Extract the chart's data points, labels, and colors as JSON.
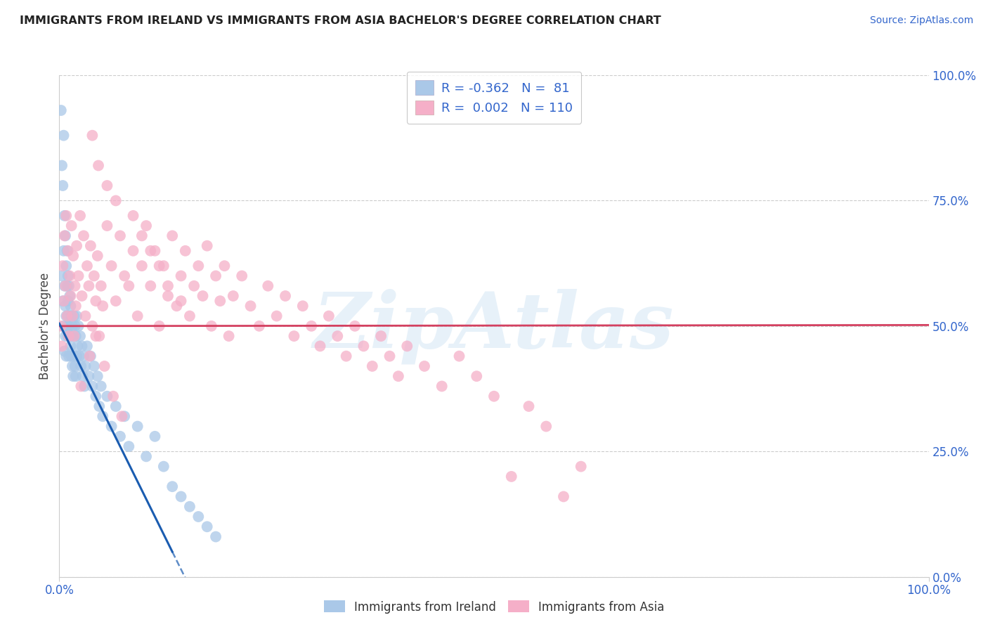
{
  "title": "IMMIGRANTS FROM IRELAND VS IMMIGRANTS FROM ASIA BACHELOR'S DEGREE CORRELATION CHART",
  "source": "Source: ZipAtlas.com",
  "ylabel": "Bachelor's Degree",
  "legend_labels": [
    "Immigrants from Ireland",
    "Immigrants from Asia"
  ],
  "legend_R": [
    -0.362,
    0.002
  ],
  "legend_N": [
    81,
    110
  ],
  "xlim": [
    0.0,
    1.0
  ],
  "ylim": [
    0.0,
    1.0
  ],
  "ytick_labels": [
    "0.0%",
    "25.0%",
    "50.0%",
    "75.0%",
    "100.0%"
  ],
  "ytick_values": [
    0.0,
    0.25,
    0.5,
    0.75,
    1.0
  ],
  "color_ireland": "#aac8e8",
  "color_asia": "#f5afc8",
  "color_ireland_line": "#1a5cb0",
  "color_asia_line": "#d44060",
  "watermark": "ZipAtlas",
  "ireland_x": [
    0.002,
    0.003,
    0.003,
    0.004,
    0.004,
    0.005,
    0.005,
    0.005,
    0.006,
    0.006,
    0.006,
    0.007,
    0.007,
    0.007,
    0.008,
    0.008,
    0.008,
    0.009,
    0.009,
    0.009,
    0.01,
    0.01,
    0.01,
    0.01,
    0.011,
    0.011,
    0.011,
    0.012,
    0.012,
    0.013,
    0.013,
    0.014,
    0.014,
    0.015,
    0.015,
    0.016,
    0.016,
    0.017,
    0.017,
    0.018,
    0.018,
    0.019,
    0.019,
    0.02,
    0.02,
    0.021,
    0.022,
    0.023,
    0.024,
    0.025,
    0.026,
    0.027,
    0.028,
    0.029,
    0.03,
    0.032,
    0.034,
    0.036,
    0.038,
    0.04,
    0.042,
    0.044,
    0.046,
    0.048,
    0.05,
    0.055,
    0.06,
    0.065,
    0.07,
    0.075,
    0.08,
    0.09,
    0.1,
    0.11,
    0.12,
    0.13,
    0.14,
    0.15,
    0.16,
    0.17,
    0.18
  ],
  "ireland_y": [
    0.93,
    0.82,
    0.6,
    0.78,
    0.55,
    0.88,
    0.65,
    0.5,
    0.72,
    0.58,
    0.45,
    0.68,
    0.54,
    0.48,
    0.62,
    0.52,
    0.44,
    0.65,
    0.5,
    0.58,
    0.6,
    0.55,
    0.48,
    0.52,
    0.58,
    0.5,
    0.44,
    0.56,
    0.48,
    0.54,
    0.46,
    0.52,
    0.44,
    0.5,
    0.42,
    0.48,
    0.4,
    0.52,
    0.44,
    0.5,
    0.42,
    0.48,
    0.4,
    0.52,
    0.44,
    0.46,
    0.5,
    0.44,
    0.48,
    0.42,
    0.46,
    0.4,
    0.44,
    0.38,
    0.42,
    0.46,
    0.4,
    0.44,
    0.38,
    0.42,
    0.36,
    0.4,
    0.34,
    0.38,
    0.32,
    0.36,
    0.3,
    0.34,
    0.28,
    0.32,
    0.26,
    0.3,
    0.24,
    0.28,
    0.22,
    0.18,
    0.16,
    0.14,
    0.12,
    0.1,
    0.08
  ],
  "asia_x": [
    0.002,
    0.003,
    0.004,
    0.005,
    0.006,
    0.007,
    0.008,
    0.009,
    0.01,
    0.011,
    0.012,
    0.013,
    0.014,
    0.015,
    0.016,
    0.017,
    0.018,
    0.019,
    0.02,
    0.022,
    0.024,
    0.026,
    0.028,
    0.03,
    0.032,
    0.034,
    0.036,
    0.038,
    0.04,
    0.042,
    0.044,
    0.046,
    0.048,
    0.05,
    0.055,
    0.06,
    0.065,
    0.07,
    0.075,
    0.08,
    0.085,
    0.09,
    0.095,
    0.1,
    0.105,
    0.11,
    0.115,
    0.12,
    0.125,
    0.13,
    0.135,
    0.14,
    0.145,
    0.15,
    0.155,
    0.16,
    0.165,
    0.17,
    0.175,
    0.18,
    0.185,
    0.19,
    0.195,
    0.2,
    0.21,
    0.22,
    0.23,
    0.24,
    0.25,
    0.26,
    0.27,
    0.28,
    0.29,
    0.3,
    0.31,
    0.32,
    0.33,
    0.34,
    0.35,
    0.36,
    0.37,
    0.38,
    0.39,
    0.4,
    0.42,
    0.44,
    0.46,
    0.48,
    0.5,
    0.52,
    0.54,
    0.56,
    0.58,
    0.6,
    0.038,
    0.045,
    0.055,
    0.065,
    0.085,
    0.095,
    0.105,
    0.115,
    0.125,
    0.14,
    0.025,
    0.035,
    0.042,
    0.052,
    0.062,
    0.072
  ],
  "asia_y": [
    0.5,
    0.46,
    0.62,
    0.55,
    0.68,
    0.58,
    0.72,
    0.52,
    0.65,
    0.48,
    0.6,
    0.56,
    0.7,
    0.52,
    0.64,
    0.48,
    0.58,
    0.54,
    0.66,
    0.6,
    0.72,
    0.56,
    0.68,
    0.52,
    0.62,
    0.58,
    0.66,
    0.5,
    0.6,
    0.55,
    0.64,
    0.48,
    0.58,
    0.54,
    0.7,
    0.62,
    0.55,
    0.68,
    0.6,
    0.58,
    0.65,
    0.52,
    0.62,
    0.7,
    0.58,
    0.65,
    0.5,
    0.62,
    0.56,
    0.68,
    0.54,
    0.6,
    0.65,
    0.52,
    0.58,
    0.62,
    0.56,
    0.66,
    0.5,
    0.6,
    0.55,
    0.62,
    0.48,
    0.56,
    0.6,
    0.54,
    0.5,
    0.58,
    0.52,
    0.56,
    0.48,
    0.54,
    0.5,
    0.46,
    0.52,
    0.48,
    0.44,
    0.5,
    0.46,
    0.42,
    0.48,
    0.44,
    0.4,
    0.46,
    0.42,
    0.38,
    0.44,
    0.4,
    0.36,
    0.2,
    0.34,
    0.3,
    0.16,
    0.22,
    0.88,
    0.82,
    0.78,
    0.75,
    0.72,
    0.68,
    0.65,
    0.62,
    0.58,
    0.55,
    0.38,
    0.44,
    0.48,
    0.42,
    0.36,
    0.32
  ]
}
